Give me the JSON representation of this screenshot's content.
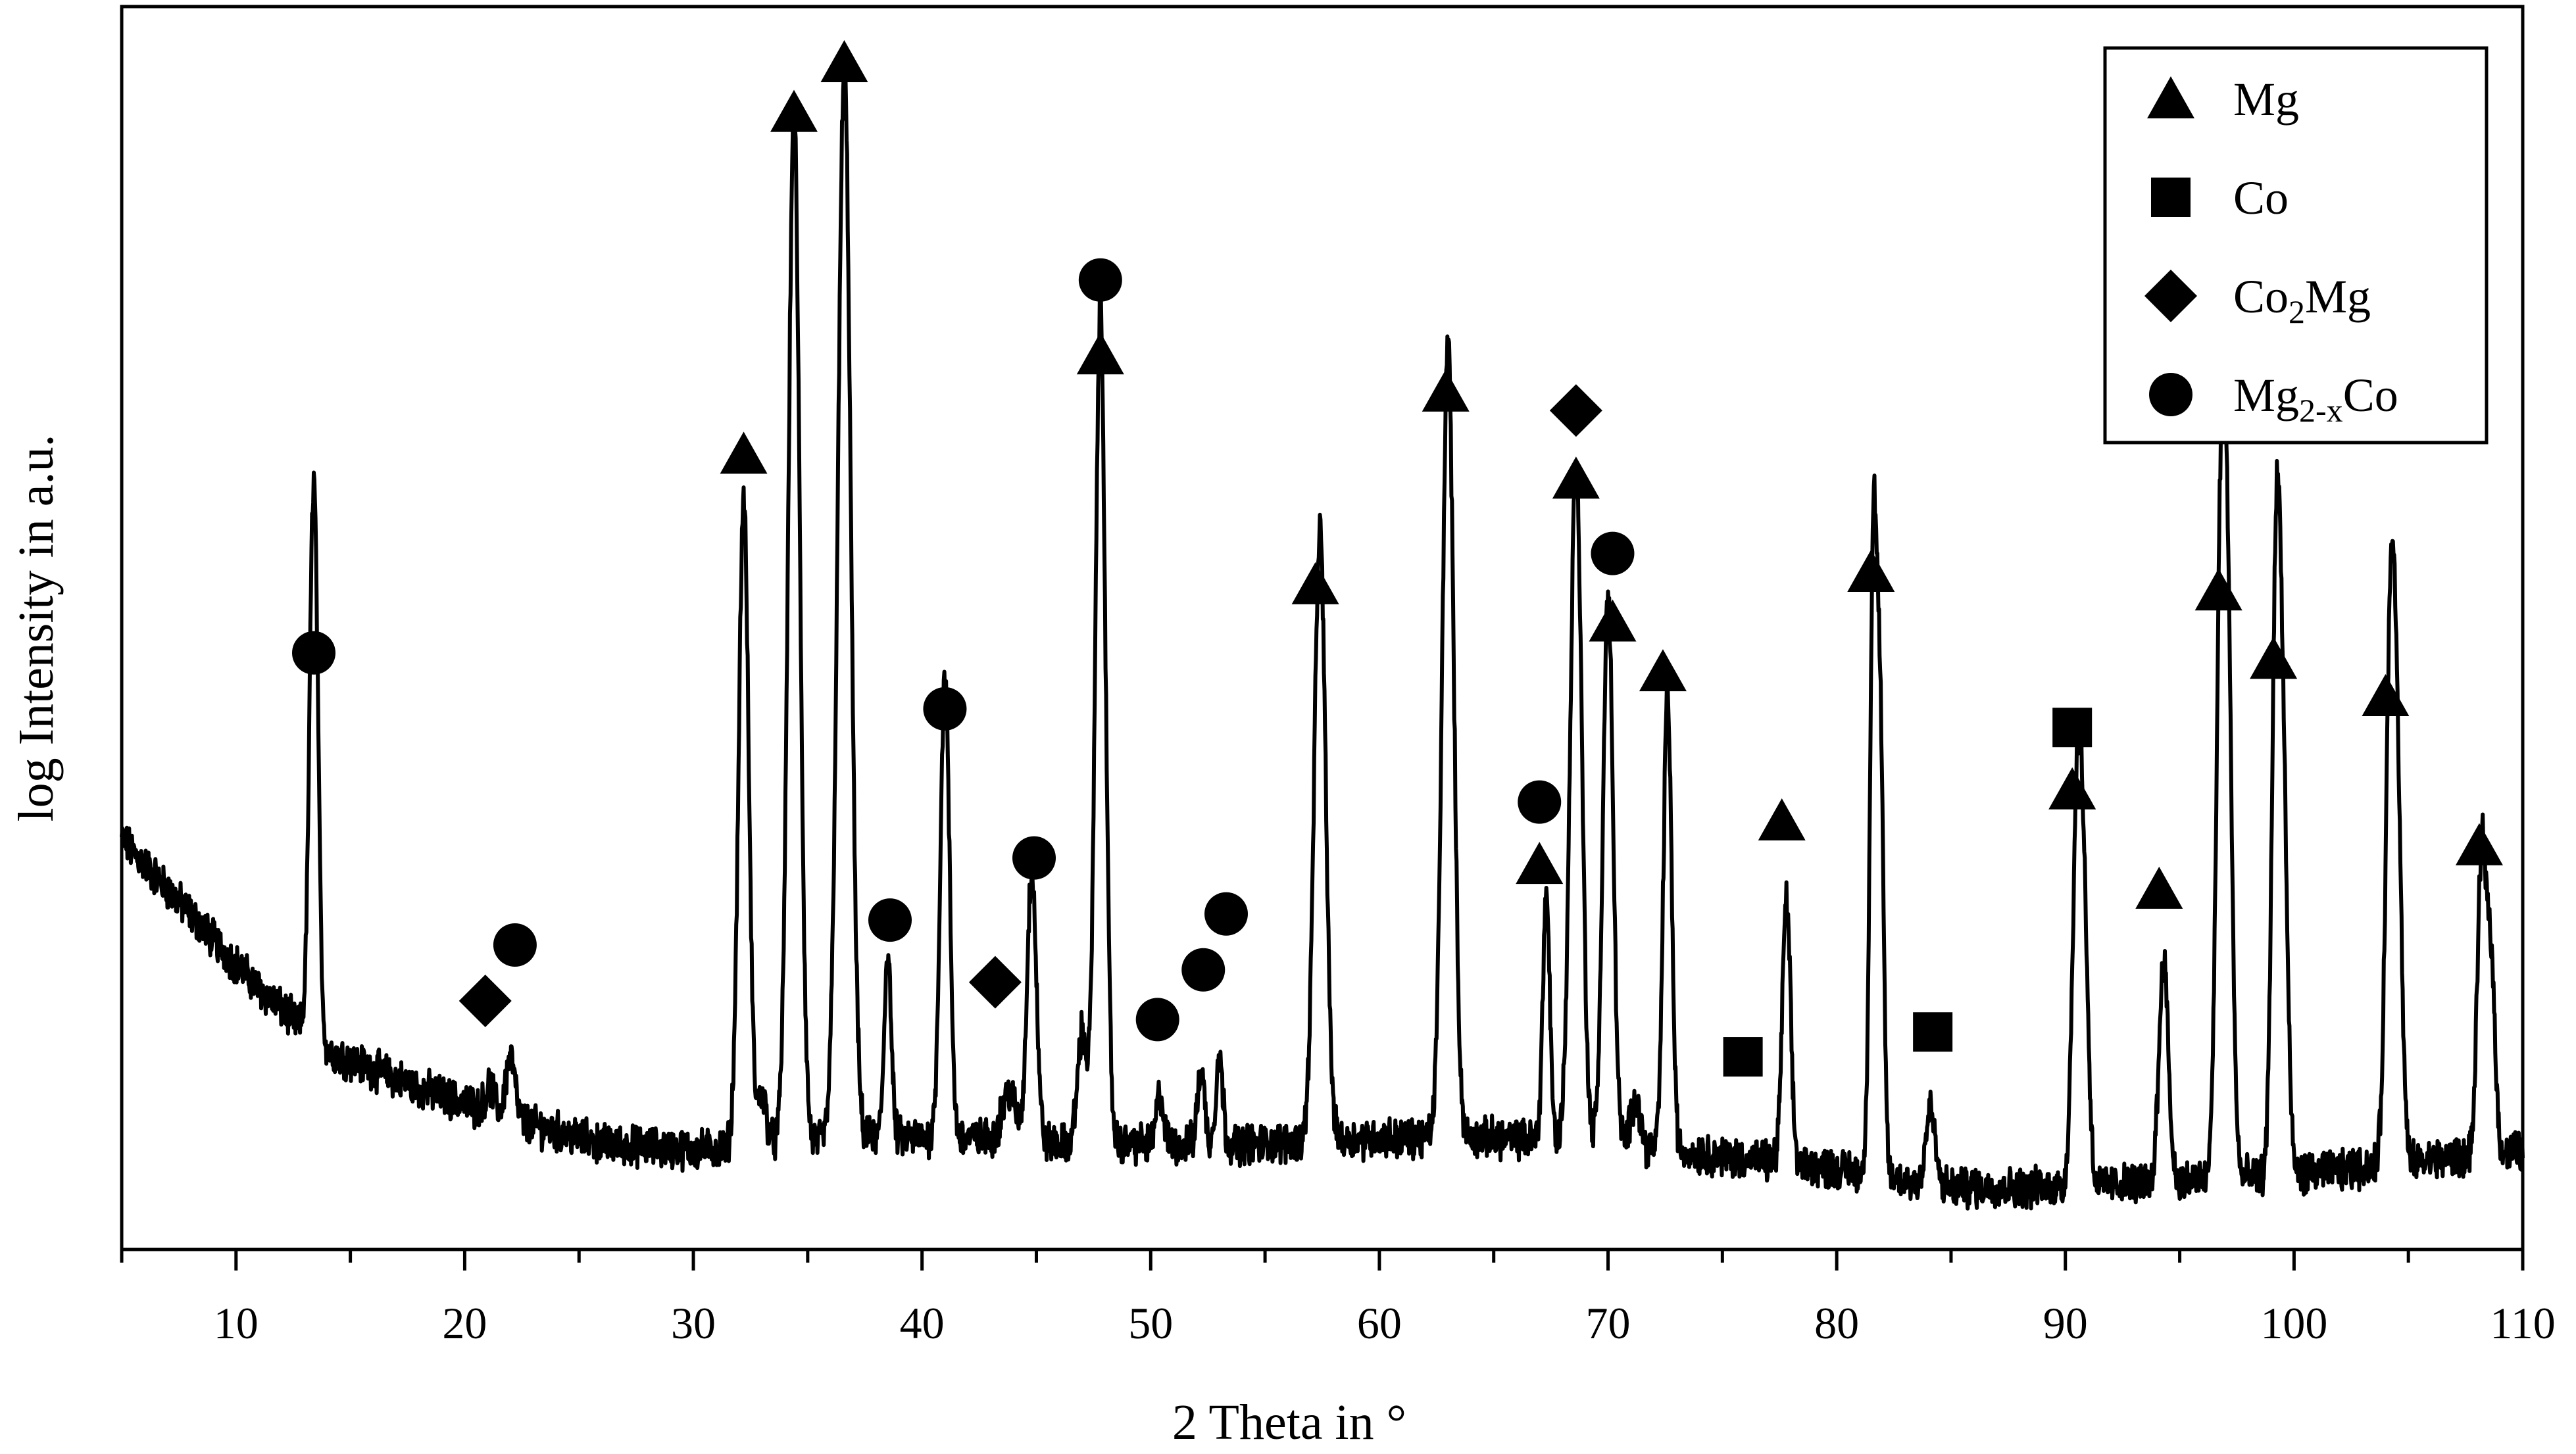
{
  "chart_data": {
    "type": "line",
    "title": "",
    "xlabel": "2 Theta in °",
    "ylabel": "log Intensity in a.u.",
    "xlim": [
      5,
      110
    ],
    "ylim": [
      0,
      100
    ],
    "x_ticks": [
      10,
      20,
      30,
      40,
      50,
      60,
      70,
      80,
      90,
      100,
      110
    ],
    "grid": false,
    "legend_position": "top-right",
    "legend": [
      {
        "marker": "triangle",
        "label": "Mg"
      },
      {
        "marker": "square",
        "label": "Co"
      },
      {
        "marker": "diamond",
        "label": "Co",
        "sub": "2",
        "suffix": "Mg"
      },
      {
        "marker": "circle",
        "label": "Mg",
        "sub": "2-x",
        "suffix": "Co"
      }
    ],
    "baseline": [
      [
        5,
        33
      ],
      [
        8,
        27
      ],
      [
        11,
        21
      ],
      [
        14,
        16
      ],
      [
        18,
        13
      ],
      [
        22,
        10.5
      ],
      [
        26,
        8.5
      ],
      [
        30,
        8
      ],
      [
        34,
        8.5
      ],
      [
        38,
        9
      ],
      [
        42,
        9
      ],
      [
        46,
        8.5
      ],
      [
        50,
        8.5
      ],
      [
        55,
        8.5
      ],
      [
        60,
        9
      ],
      [
        65,
        9
      ],
      [
        70,
        8.5
      ],
      [
        75,
        7.5
      ],
      [
        80,
        6.5
      ],
      [
        85,
        5
      ],
      [
        90,
        5
      ],
      [
        95,
        5.5
      ],
      [
        100,
        6
      ],
      [
        105,
        7
      ],
      [
        110,
        8
      ]
    ],
    "peaks": [
      {
        "x": 13.4,
        "h": 45,
        "w": 0.18
      },
      {
        "x": 21.1,
        "h": 2,
        "w": 0.2
      },
      {
        "x": 22.0,
        "h": 5,
        "w": 0.2
      },
      {
        "x": 32.2,
        "h": 52,
        "w": 0.22
      },
      {
        "x": 33.0,
        "h": 4,
        "w": 0.2
      },
      {
        "x": 34.4,
        "h": 83,
        "w": 0.25
      },
      {
        "x": 36.6,
        "h": 86,
        "w": 0.28
      },
      {
        "x": 38.5,
        "h": 15,
        "w": 0.15
      },
      {
        "x": 41.0,
        "h": 37,
        "w": 0.2
      },
      {
        "x": 43.8,
        "h": 4,
        "w": 0.3
      },
      {
        "x": 44.8,
        "h": 22,
        "w": 0.2
      },
      {
        "x": 47.0,
        "h": 9,
        "w": 0.2
      },
      {
        "x": 47.8,
        "h": 67,
        "w": 0.22
      },
      {
        "x": 50.4,
        "h": 4,
        "w": 0.15
      },
      {
        "x": 52.2,
        "h": 6,
        "w": 0.15
      },
      {
        "x": 53.0,
        "h": 7,
        "w": 0.15
      },
      {
        "x": 57.4,
        "h": 49,
        "w": 0.25
      },
      {
        "x": 63.0,
        "h": 64,
        "w": 0.25
      },
      {
        "x": 67.3,
        "h": 20,
        "w": 0.15
      },
      {
        "x": 68.6,
        "h": 55,
        "w": 0.25
      },
      {
        "x": 70.0,
        "h": 44,
        "w": 0.22
      },
      {
        "x": 71.2,
        "h": 4,
        "w": 0.2
      },
      {
        "x": 72.6,
        "h": 37,
        "w": 0.18
      },
      {
        "x": 77.8,
        "h": 21,
        "w": 0.18
      },
      {
        "x": 81.6,
        "h": 49,
        "w": 0.15
      },
      {
        "x": 81.9,
        "h": 34,
        "w": 0.15
      },
      {
        "x": 84.1,
        "h": 6,
        "w": 0.2
      },
      {
        "x": 90.5,
        "h": 28,
        "w": 0.2
      },
      {
        "x": 90.8,
        "h": 20,
        "w": 0.2
      },
      {
        "x": 94.3,
        "h": 18,
        "w": 0.2
      },
      {
        "x": 96.8,
        "h": 48,
        "w": 0.2
      },
      {
        "x": 97.1,
        "h": 38,
        "w": 0.2
      },
      {
        "x": 99.2,
        "h": 43,
        "w": 0.18
      },
      {
        "x": 99.5,
        "h": 32,
        "w": 0.2
      },
      {
        "x": 104.2,
        "h": 38,
        "w": 0.2
      },
      {
        "x": 104.5,
        "h": 28,
        "w": 0.2
      },
      {
        "x": 108.2,
        "h": 24,
        "w": 0.18
      },
      {
        "x": 108.6,
        "h": 16,
        "w": 0.18
      }
    ],
    "markers": [
      {
        "type": "circle",
        "x": 13.4,
        "y": 48
      },
      {
        "type": "diamond",
        "x": 20.9,
        "y": 20
      },
      {
        "type": "circle",
        "x": 22.2,
        "y": 24.5
      },
      {
        "type": "triangle",
        "x": 32.2,
        "y": 64
      },
      {
        "type": "triangle",
        "x": 34.4,
        "y": 91.5
      },
      {
        "type": "triangle",
        "x": 36.6,
        "y": 95.5
      },
      {
        "type": "circle",
        "x": 38.6,
        "y": 26.5
      },
      {
        "type": "circle",
        "x": 41.0,
        "y": 43.5
      },
      {
        "type": "diamond",
        "x": 43.2,
        "y": 21.5
      },
      {
        "type": "circle",
        "x": 44.9,
        "y": 31.5
      },
      {
        "type": "circle",
        "x": 47.8,
        "y": 78
      },
      {
        "type": "triangle",
        "x": 47.8,
        "y": 72
      },
      {
        "type": "circle",
        "x": 50.3,
        "y": 18.5
      },
      {
        "type": "circle",
        "x": 52.3,
        "y": 22.5
      },
      {
        "type": "circle",
        "x": 53.3,
        "y": 27
      },
      {
        "type": "triangle",
        "x": 57.2,
        "y": 53.5
      },
      {
        "type": "triangle",
        "x": 62.9,
        "y": 69
      },
      {
        "type": "circle",
        "x": 67.0,
        "y": 36
      },
      {
        "type": "triangle",
        "x": 67.0,
        "y": 31
      },
      {
        "type": "diamond",
        "x": 68.6,
        "y": 67.5
      },
      {
        "type": "triangle",
        "x": 68.6,
        "y": 62
      },
      {
        "type": "circle",
        "x": 70.2,
        "y": 56
      },
      {
        "type": "triangle",
        "x": 70.2,
        "y": 50.5
      },
      {
        "type": "triangle",
        "x": 72.4,
        "y": 46.5
      },
      {
        "type": "square",
        "x": 75.9,
        "y": 15.5
      },
      {
        "type": "triangle",
        "x": 77.6,
        "y": 34.5
      },
      {
        "type": "triangle",
        "x": 81.5,
        "y": 54.5
      },
      {
        "type": "square",
        "x": 84.2,
        "y": 17.5
      },
      {
        "type": "square",
        "x": 90.3,
        "y": 42
      },
      {
        "type": "triangle",
        "x": 90.3,
        "y": 37
      },
      {
        "type": "triangle",
        "x": 94.1,
        "y": 29
      },
      {
        "type": "triangle",
        "x": 96.7,
        "y": 53
      },
      {
        "type": "triangle",
        "x": 99.1,
        "y": 47.5
      },
      {
        "type": "triangle",
        "x": 104.0,
        "y": 44.5
      },
      {
        "type": "triangle",
        "x": 108.1,
        "y": 32.5
      }
    ]
  }
}
